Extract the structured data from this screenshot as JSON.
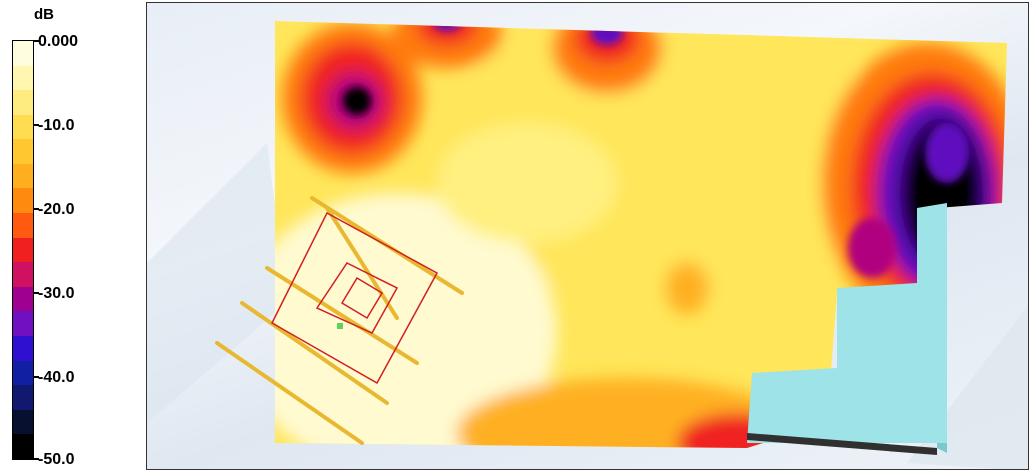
{
  "legend": {
    "unit": "dB",
    "ticks": [
      "0.000",
      "-10.0",
      "-20.0",
      "-30.0",
      "-40.0",
      "-50.0"
    ],
    "band_colors": [
      "#fffde0",
      "#fff7b0",
      "#ffec80",
      "#ffdc50",
      "#ffc830",
      "#ffae20",
      "#ff8a10",
      "#ff5a10",
      "#f02020",
      "#d01060",
      "#a00090",
      "#7010c0",
      "#3010d0",
      "#1020a0",
      "#101870",
      "#081030",
      "#000000"
    ]
  },
  "map": {
    "colors": {
      "bg_pale": "#fffad0",
      "mid_yellow": "#ffe65a",
      "orange": "#ffb020",
      "deep_orange": "#ff7a10",
      "red": "#f02020",
      "magenta": "#b00080",
      "purple": "#6010c0",
      "black": "#000000",
      "cyan": "#9ee3e8"
    }
  }
}
